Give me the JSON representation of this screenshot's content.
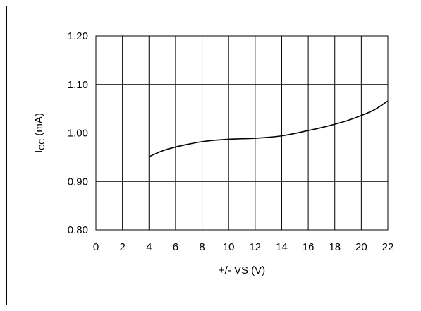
{
  "chart_data": {
    "type": "line",
    "xlabel": "+/- VS (V)",
    "ylabel_main": "I",
    "ylabel_sub": "CC",
    "ylabel_unit": " (mA)",
    "xlim": [
      0,
      22
    ],
    "ylim": [
      0.8,
      1.2
    ],
    "x_ticks": [
      "0",
      "2",
      "4",
      "6",
      "8",
      "10",
      "12",
      "14",
      "16",
      "18",
      "20",
      "22"
    ],
    "y_ticks": [
      "0.80",
      "0.90",
      "1.00",
      "1.10",
      "1.20"
    ],
    "grid": true,
    "series": [
      {
        "x": [
          4,
          5,
          6,
          7,
          8,
          9,
          10,
          11,
          12,
          13,
          14,
          15,
          16,
          17,
          18,
          19,
          20,
          21,
          22
        ],
        "y": [
          0.951,
          0.963,
          0.971,
          0.977,
          0.982,
          0.985,
          0.987,
          0.988,
          0.989,
          0.991,
          0.994,
          0.999,
          1.005,
          1.011,
          1.018,
          1.026,
          1.036,
          1.048,
          1.066
        ],
        "color": "#000000"
      }
    ]
  }
}
